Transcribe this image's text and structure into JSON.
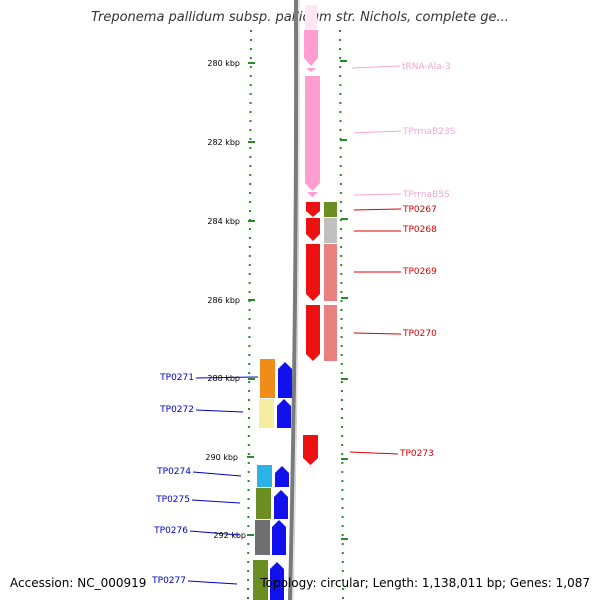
{
  "title": "Treponema pallidum subsp. pallidum str. Nichols, complete ge...",
  "footer": {
    "accession": "Accession: NC_000919",
    "summary": "Topology: circular; Length: 1,138,011 bp; Genes: 1,087"
  },
  "ticks": [
    "280 kbp",
    "282 kbp",
    "284 kbp",
    "286 kbp",
    "288 kbp",
    "290 kbp",
    "292 kbp"
  ],
  "labels_right": [
    {
      "text": "tRNA-Ala-3",
      "color": "#f2a6cf"
    },
    {
      "text": "TPrrnaB23S",
      "color": "#f2a6cf"
    },
    {
      "text": "TPrrnaB5S",
      "color": "#f2a6cf"
    },
    {
      "text": "TP0267",
      "color": "#dd0000"
    },
    {
      "text": "TP0268",
      "color": "#dd0000"
    },
    {
      "text": "TP0269",
      "color": "#dd0000"
    },
    {
      "text": "TP0270",
      "color": "#dd0000"
    },
    {
      "text": "TP0273",
      "color": "#dd0000"
    }
  ],
  "labels_left": [
    {
      "text": "TP0271",
      "color": "#0000cc"
    },
    {
      "text": "TP0272",
      "color": "#0000cc"
    },
    {
      "text": "TP0274",
      "color": "#0000cc"
    },
    {
      "text": "TP0275",
      "color": "#0000cc"
    },
    {
      "text": "TP0276",
      "color": "#0000cc"
    },
    {
      "text": "TP0277",
      "color": "#0000cc"
    }
  ],
  "colors": {
    "backbone": "#808080",
    "rna": "#ff9ecf",
    "forward_gene": "#ee1111",
    "reverse_gene": "#1111ee",
    "tick": "#2a8a2a"
  }
}
